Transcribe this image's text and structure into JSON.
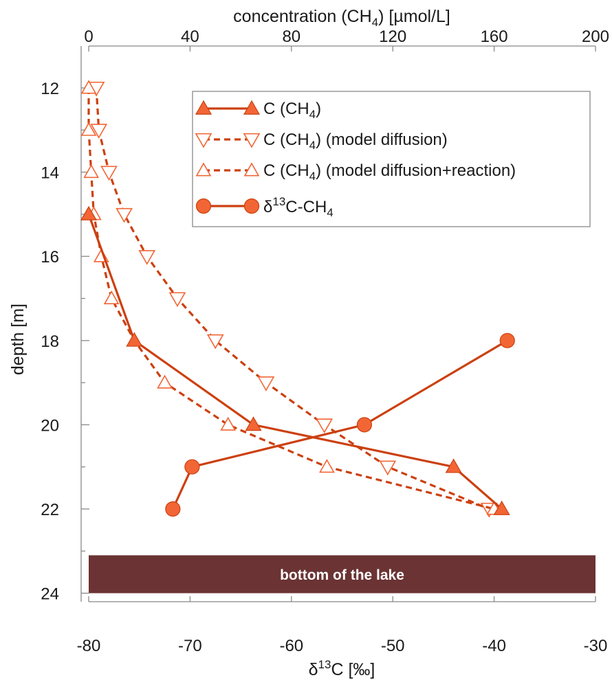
{
  "colors": {
    "series": "#CC4010",
    "marker_fill": "#F26535",
    "open_marker": "#F26535",
    "lake_bottom": "#6B3333",
    "axis": "#888888"
  },
  "chart_data": {
    "type": "line",
    "orientation": "depth-profile",
    "top_axis": {
      "label_main": "concentration (CH",
      "label_sub": "4",
      "label_tail": ") [µmol/L]",
      "range": [
        0,
        200
      ],
      "ticks": [
        "0",
        "40",
        "80",
        "120",
        "160",
        "200"
      ]
    },
    "bottom_axis": {
      "label_main": "δ",
      "label_sup": "13",
      "label_tail": "C [‰]",
      "range": [
        -80,
        -30
      ],
      "ticks": [
        "-80",
        "-70",
        "-60",
        "-50",
        "-40",
        "-30"
      ]
    },
    "y_axis": {
      "label": "depth [m]",
      "range": [
        12,
        24
      ],
      "reversed": true,
      "ticks": [
        "12",
        "14",
        "16",
        "18",
        "20",
        "22",
        "24"
      ]
    },
    "grid": false,
    "legend_position": "top-right",
    "series": [
      {
        "name_main": "C (CH",
        "name_sub": "4",
        "name_tail": ")",
        "axis": "top",
        "style": "solid",
        "marker": "filled-triangle-up",
        "points": [
          {
            "x": 0,
            "depth": 15
          },
          {
            "x": 18,
            "depth": 18
          },
          {
            "x": 65,
            "depth": 20
          },
          {
            "x": 144,
            "depth": 21
          },
          {
            "x": 163,
            "depth": 22
          }
        ]
      },
      {
        "name_main": "C (CH",
        "name_sub": "4",
        "name_tail": ") (model diffusion)",
        "axis": "top",
        "style": "dashed",
        "marker": "open-triangle-down",
        "points": [
          {
            "x": 3,
            "depth": 12
          },
          {
            "x": 4,
            "depth": 13
          },
          {
            "x": 8,
            "depth": 14
          },
          {
            "x": 14,
            "depth": 15
          },
          {
            "x": 23,
            "depth": 16
          },
          {
            "x": 35,
            "depth": 17
          },
          {
            "x": 50,
            "depth": 18
          },
          {
            "x": 70,
            "depth": 19
          },
          {
            "x": 93,
            "depth": 20
          },
          {
            "x": 118,
            "depth": 21
          },
          {
            "x": 158,
            "depth": 22
          }
        ]
      },
      {
        "name_main": "C (CH",
        "name_sub": "4",
        "name_tail": ") (model diffusion+reaction)",
        "axis": "top",
        "style": "dashed",
        "marker": "open-triangle-up",
        "points": [
          {
            "x": 0,
            "depth": 12
          },
          {
            "x": 0,
            "depth": 13
          },
          {
            "x": 1,
            "depth": 14
          },
          {
            "x": 2,
            "depth": 15
          },
          {
            "x": 5,
            "depth": 16
          },
          {
            "x": 9,
            "depth": 17
          },
          {
            "x": 18,
            "depth": 18
          },
          {
            "x": 30,
            "depth": 19
          },
          {
            "x": 55,
            "depth": 20
          },
          {
            "x": 94,
            "depth": 21
          },
          {
            "x": 160,
            "depth": 22
          }
        ]
      },
      {
        "name_main": "δ",
        "name_sup": "13",
        "name_tail": "C-CH",
        "name_sub": "4",
        "axis": "bottom",
        "style": "solid",
        "marker": "filled-circle",
        "points": [
          {
            "x": -38.7,
            "depth": 18
          },
          {
            "x": -52.8,
            "depth": 20
          },
          {
            "x": -69.8,
            "depth": 21
          },
          {
            "x": -71.7,
            "depth": 22
          }
        ]
      }
    ],
    "annotations": [
      {
        "text": "bottom of the lake",
        "depth_range": [
          23.1,
          24
        ]
      }
    ]
  }
}
